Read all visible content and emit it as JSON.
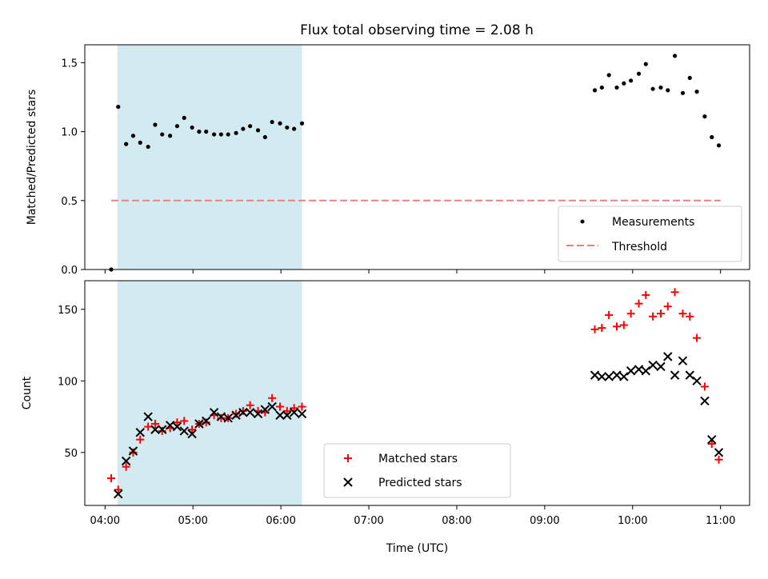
{
  "chart_data": {
    "type": "scatter",
    "title": "Flux total observing time = 2.08 h",
    "xlabel": "Time (UTC)",
    "x_ticks": [
      "04:00",
      "05:00",
      "06:00",
      "07:00",
      "08:00",
      "09:00",
      "10:00",
      "11:00"
    ],
    "x_range_hours": [
      3.77,
      11.33
    ],
    "shaded_interval_hours": [
      4.14,
      6.24
    ],
    "shade_color": "#d3eaf0",
    "panels": [
      {
        "ylabel": "Matched/Predicted stars",
        "ylim": [
          0,
          1.63
        ],
        "yticks": [
          "0.0",
          "0.5",
          "1.0",
          "1.5"
        ],
        "legend": {
          "position": "lower right",
          "entries": [
            "Measurements",
            "Threshold"
          ]
        },
        "threshold": {
          "name": "Threshold",
          "value": 0.5,
          "x_range_hours": [
            4.07,
            11.0
          ],
          "color": "#f08080"
        },
        "measurements": {
          "name": "Measurements",
          "color": "#000000",
          "points": [
            [
              4.07,
              0.0
            ],
            [
              4.15,
              1.18
            ],
            [
              4.24,
              0.91
            ],
            [
              4.32,
              0.97
            ],
            [
              4.4,
              0.92
            ],
            [
              4.49,
              0.89
            ],
            [
              4.57,
              1.05
            ],
            [
              4.65,
              0.98
            ],
            [
              4.74,
              0.97
            ],
            [
              4.82,
              1.04
            ],
            [
              4.9,
              1.1
            ],
            [
              4.99,
              1.03
            ],
            [
              5.07,
              1.0
            ],
            [
              5.15,
              1.0
            ],
            [
              5.24,
              0.98
            ],
            [
              5.32,
              0.98
            ],
            [
              5.4,
              0.98
            ],
            [
              5.49,
              0.99
            ],
            [
              5.57,
              1.02
            ],
            [
              5.65,
              1.04
            ],
            [
              5.74,
              1.01
            ],
            [
              5.82,
              0.96
            ],
            [
              5.9,
              1.07
            ],
            [
              5.99,
              1.06
            ],
            [
              6.07,
              1.03
            ],
            [
              6.15,
              1.02
            ],
            [
              6.24,
              1.06
            ],
            [
              9.57,
              1.3
            ],
            [
              9.65,
              1.32
            ],
            [
              9.73,
              1.41
            ],
            [
              9.82,
              1.32
            ],
            [
              9.9,
              1.35
            ],
            [
              9.98,
              1.37
            ],
            [
              10.07,
              1.42
            ],
            [
              10.15,
              1.49
            ],
            [
              10.23,
              1.31
            ],
            [
              10.32,
              1.32
            ],
            [
              10.4,
              1.3
            ],
            [
              10.48,
              1.55
            ],
            [
              10.57,
              1.28
            ],
            [
              10.65,
              1.39
            ],
            [
              10.73,
              1.29
            ],
            [
              10.82,
              1.11
            ],
            [
              10.9,
              0.96
            ],
            [
              10.98,
              0.9
            ]
          ]
        }
      },
      {
        "ylabel": "Count",
        "ylim": [
          13,
          170
        ],
        "yticks": [
          "50",
          "100",
          "150"
        ],
        "legend": {
          "position": "lower center",
          "entries": [
            "Matched stars",
            "Predicted stars"
          ]
        },
        "series": [
          {
            "name": "Matched stars",
            "marker": "plus",
            "color": "#ff0000",
            "points": [
              [
                4.07,
                32
              ],
              [
                4.15,
                24
              ],
              [
                4.24,
                40
              ],
              [
                4.32,
                50
              ],
              [
                4.4,
                59
              ],
              [
                4.49,
                68
              ],
              [
                4.57,
                70
              ],
              [
                4.65,
                65
              ],
              [
                4.74,
                67
              ],
              [
                4.82,
                71
              ],
              [
                4.9,
                72
              ],
              [
                4.99,
                66
              ],
              [
                5.07,
                70
              ],
              [
                5.15,
                71
              ],
              [
                5.24,
                76
              ],
              [
                5.32,
                74
              ],
              [
                5.4,
                74
              ],
              [
                5.49,
                77
              ],
              [
                5.57,
                79
              ],
              [
                5.65,
                83
              ],
              [
                5.74,
                79
              ],
              [
                5.82,
                78
              ],
              [
                5.9,
                88
              ],
              [
                5.99,
                82
              ],
              [
                6.07,
                79
              ],
              [
                6.15,
                81
              ],
              [
                6.24,
                82
              ],
              [
                9.57,
                136
              ],
              [
                9.65,
                137
              ],
              [
                9.73,
                146
              ],
              [
                9.82,
                138
              ],
              [
                9.9,
                139
              ],
              [
                9.98,
                147
              ],
              [
                10.07,
                154
              ],
              [
                10.15,
                160
              ],
              [
                10.23,
                145
              ],
              [
                10.32,
                147
              ],
              [
                10.4,
                152
              ],
              [
                10.48,
                162
              ],
              [
                10.57,
                147
              ],
              [
                10.65,
                145
              ],
              [
                10.73,
                130
              ],
              [
                10.82,
                96
              ],
              [
                10.9,
                56
              ],
              [
                10.98,
                45
              ]
            ]
          },
          {
            "name": "Predicted stars",
            "marker": "x",
            "color": "#000000",
            "points": [
              [
                4.15,
                21
              ],
              [
                4.24,
                44
              ],
              [
                4.32,
                51
              ],
              [
                4.4,
                64
              ],
              [
                4.49,
                75
              ],
              [
                4.57,
                66
              ],
              [
                4.65,
                66
              ],
              [
                4.74,
                69
              ],
              [
                4.82,
                68
              ],
              [
                4.9,
                65
              ],
              [
                4.99,
                63
              ],
              [
                5.07,
                70
              ],
              [
                5.15,
                72
              ],
              [
                5.24,
                78
              ],
              [
                5.32,
                75
              ],
              [
                5.4,
                74
              ],
              [
                5.49,
                76
              ],
              [
                5.57,
                78
              ],
              [
                5.65,
                78
              ],
              [
                5.74,
                77
              ],
              [
                5.82,
                80
              ],
              [
                5.9,
                82
              ],
              [
                5.99,
                76
              ],
              [
                6.07,
                76
              ],
              [
                6.15,
                78
              ],
              [
                6.24,
                77
              ],
              [
                9.57,
                104
              ],
              [
                9.65,
                103
              ],
              [
                9.73,
                103
              ],
              [
                9.82,
                104
              ],
              [
                9.9,
                103
              ],
              [
                9.98,
                107
              ],
              [
                10.07,
                108
              ],
              [
                10.15,
                107
              ],
              [
                10.23,
                111
              ],
              [
                10.32,
                110
              ],
              [
                10.4,
                117
              ],
              [
                10.48,
                104
              ],
              [
                10.57,
                114
              ],
              [
                10.65,
                104
              ],
              [
                10.73,
                100
              ],
              [
                10.82,
                86
              ],
              [
                10.9,
                59
              ],
              [
                10.98,
                50
              ]
            ]
          }
        ]
      }
    ]
  }
}
